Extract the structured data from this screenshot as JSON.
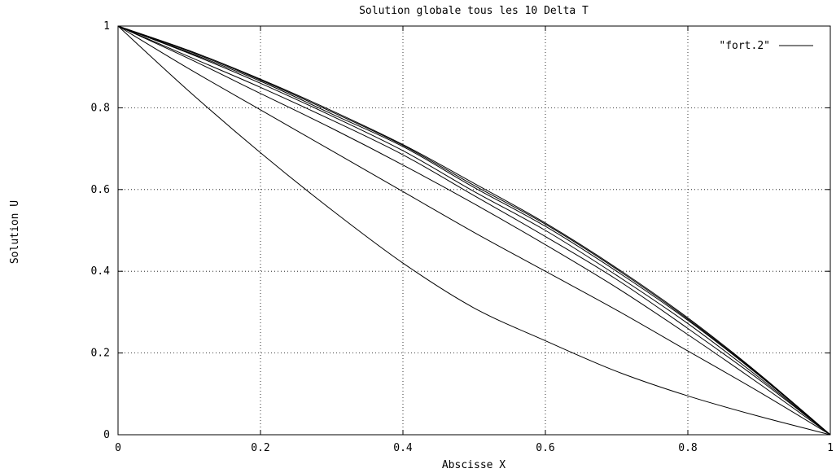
{
  "chart_data": {
    "type": "line",
    "title": "Solution globale tous les 10 Delta T",
    "xlabel": "Abscisse X",
    "ylabel": "Solution U",
    "xlim": [
      0,
      1
    ],
    "ylim": [
      0,
      1
    ],
    "xticks": [
      "0",
      "0.2",
      "0.4",
      "0.6",
      "0.8",
      "1"
    ],
    "yticks": [
      "0",
      "0.2",
      "0.4",
      "0.6",
      "0.8",
      "1"
    ],
    "grid": true,
    "legend": {
      "position": "top-right",
      "label": "\"fort.2\""
    },
    "x": [
      0,
      0.1,
      0.2,
      0.3,
      0.4,
      0.5,
      0.6,
      0.7,
      0.8,
      0.9,
      1.0
    ],
    "series": [
      {
        "values": [
          1,
          0.84,
          0.69,
          0.55,
          0.42,
          0.31,
          0.23,
          0.155,
          0.095,
          0.045,
          0
        ]
      },
      {
        "values": [
          1,
          0.895,
          0.795,
          0.695,
          0.595,
          0.495,
          0.4,
          0.305,
          0.205,
          0.105,
          0
        ]
      },
      {
        "values": [
          1,
          0.92,
          0.835,
          0.75,
          0.66,
          0.565,
          0.465,
          0.36,
          0.245,
          0.125,
          0
        ]
      },
      {
        "values": [
          1,
          0.925,
          0.85,
          0.77,
          0.685,
          0.585,
          0.485,
          0.38,
          0.26,
          0.135,
          0
        ]
      },
      {
        "values": [
          1,
          0.933,
          0.86,
          0.78,
          0.695,
          0.595,
          0.5,
          0.39,
          0.272,
          0.14,
          0
        ]
      },
      {
        "values": [
          1,
          0.935,
          0.865,
          0.785,
          0.705,
          0.605,
          0.51,
          0.4,
          0.28,
          0.145,
          0
        ]
      },
      {
        "values": [
          1,
          0.938,
          0.868,
          0.79,
          0.708,
          0.61,
          0.515,
          0.405,
          0.283,
          0.147,
          0
        ]
      },
      {
        "values": [
          1,
          0.94,
          0.87,
          0.793,
          0.71,
          0.615,
          0.518,
          0.408,
          0.286,
          0.149,
          0
        ]
      }
    ]
  }
}
